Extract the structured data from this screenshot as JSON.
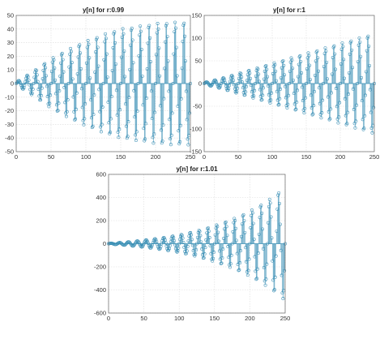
{
  "chart_data": [
    {
      "type": "stem",
      "title": "y[n] for r:0.99",
      "r": 0.99,
      "n_range": [
        0,
        250
      ],
      "xlim": [
        0,
        250
      ],
      "ylim": [
        -50,
        50
      ],
      "xticks": [
        0,
        50,
        100,
        150,
        200,
        250
      ],
      "yticks": [
        50,
        40,
        30,
        20,
        10,
        0,
        -10,
        -20,
        -30,
        -40,
        -50
      ],
      "grid": true,
      "envelope_x": [
        0,
        25,
        50,
        75,
        100,
        125,
        150,
        175,
        200,
        225,
        250
      ],
      "envelope_y": [
        1,
        9,
        18,
        25,
        31,
        36,
        40,
        42,
        44,
        45,
        45
      ],
      "oscillation_period": 12.5,
      "color": "#3a8fb5"
    },
    {
      "type": "stem",
      "title": "y[n] for r:1",
      "r": 1,
      "n_range": [
        0,
        250
      ],
      "xlim": [
        0,
        250
      ],
      "ylim": [
        -150,
        150
      ],
      "xticks": [
        0,
        50,
        100,
        150,
        200,
        250
      ],
      "yticks": [
        150,
        100,
        50,
        0,
        -50,
        -100,
        -150
      ],
      "grid": true,
      "envelope_x": [
        0,
        25,
        50,
        75,
        100,
        125,
        150,
        175,
        200,
        225,
        250
      ],
      "envelope_y": [
        2,
        11,
        22,
        33,
        44,
        55,
        66,
        77,
        88,
        99,
        110
      ],
      "oscillation_period": 12.5,
      "color": "#3a8fb5"
    },
    {
      "type": "stem",
      "title": "y[n] for r:1.01",
      "r": 1.01,
      "n_range": [
        0,
        250
      ],
      "xlim": [
        0,
        250
      ],
      "ylim": [
        -600,
        600
      ],
      "xticks": [
        0,
        50,
        100,
        150,
        200,
        250
      ],
      "yticks": [
        600,
        400,
        200,
        0,
        -200,
        -400,
        -600
      ],
      "grid": true,
      "envelope_x": [
        0,
        25,
        50,
        75,
        100,
        125,
        150,
        175,
        200,
        225,
        250
      ],
      "envelope_y": [
        2,
        14,
        30,
        50,
        75,
        110,
        155,
        210,
        280,
        370,
        490
      ],
      "oscillation_period": 12.5,
      "color": "#3a8fb5"
    }
  ]
}
